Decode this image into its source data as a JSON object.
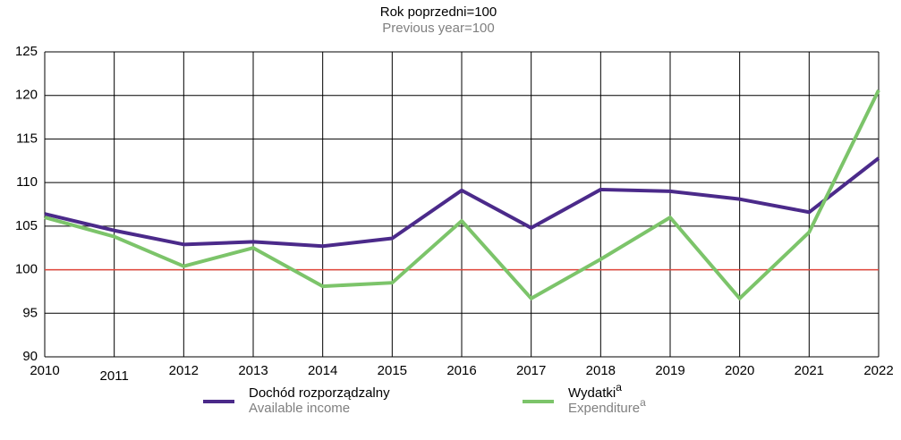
{
  "chart_data": {
    "type": "line",
    "title": "Rok poprzedni=100",
    "subtitle": "Previous year=100",
    "categories": [
      "2010",
      "2011",
      "2012",
      "2013",
      "2014",
      "2015",
      "2016",
      "2017",
      "2018",
      "2019",
      "2020",
      "2021",
      "2022"
    ],
    "series": [
      {
        "name": "Dochód rozporządzalny",
        "name_en": "Available income",
        "color": "#4b2a8a",
        "values": [
          106.4,
          104.5,
          102.9,
          103.2,
          102.7,
          103.6,
          109.1,
          104.8,
          109.2,
          109.0,
          108.1,
          106.6,
          112.8
        ]
      },
      {
        "name": "Wydatki",
        "name_en": "Expenditure",
        "footnote": "a",
        "color": "#7cc46a",
        "values": [
          106.0,
          103.8,
          100.4,
          102.5,
          98.1,
          98.5,
          105.6,
          96.7,
          101.2,
          106.0,
          96.7,
          104.3,
          120.6
        ]
      }
    ],
    "ylim": [
      90,
      125
    ],
    "yticks": [
      90,
      95,
      100,
      105,
      110,
      115,
      120,
      125
    ],
    "grid": true,
    "reference_line": {
      "value": 100,
      "color": "#e0463c"
    }
  }
}
